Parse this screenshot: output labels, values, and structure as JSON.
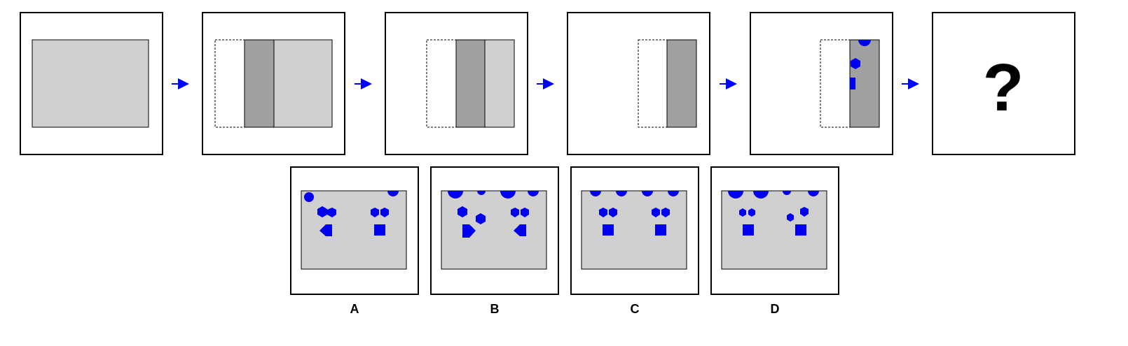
{
  "colors": {
    "frame": "#000000",
    "panel_bg": "#ffffff",
    "paper_light": "#d0d0d0",
    "paper_dark": "#a0a0a0",
    "shape_blue": "#0000ee",
    "arrow_blue": "#0000ff"
  },
  "sequence": {
    "question_mark": "?",
    "steps": [
      {
        "step": 1,
        "description_icon": "unfolded-paper"
      },
      {
        "step": 2,
        "description_icon": "fold-left-third"
      },
      {
        "step": 3,
        "description_icon": "fold-right-third-partial"
      },
      {
        "step": 4,
        "description_icon": "fully-folded-strip"
      },
      {
        "step": 5,
        "description_icon": "punched-strip"
      },
      {
        "step": 6,
        "description_icon": "question-icon"
      }
    ]
  },
  "options": [
    {
      "label": "A"
    },
    {
      "label": "B"
    },
    {
      "label": "C"
    },
    {
      "label": "D"
    }
  ]
}
